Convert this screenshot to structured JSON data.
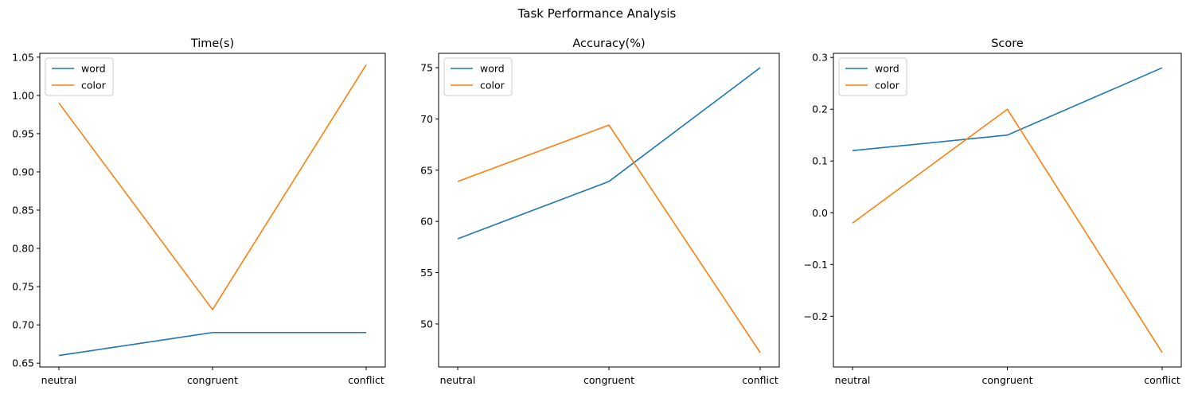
{
  "figure": {
    "suptitle": "Task Performance Analysis"
  },
  "colors": {
    "word": "#1f77b4",
    "color": "#ff7f0e",
    "axes": "#000000",
    "background": "#ffffff"
  },
  "chart_data": [
    {
      "type": "line",
      "title": "Time(s)",
      "xlabel": "",
      "ylabel": "",
      "categories": [
        "neutral",
        "congruent",
        "conflict"
      ],
      "series": [
        {
          "name": "word",
          "values": [
            0.66,
            0.69,
            0.69
          ]
        },
        {
          "name": "color",
          "values": [
            0.99,
            0.72,
            1.04
          ]
        }
      ],
      "ylim": [
        0.645,
        1.055
      ],
      "yticks": [
        0.65,
        0.7,
        0.75,
        0.8,
        0.85,
        0.9,
        0.95,
        1.0,
        1.05
      ],
      "ytick_labels": [
        "0.65",
        "0.70",
        "0.75",
        "0.80",
        "0.85",
        "0.90",
        "0.95",
        "1.00",
        "1.05"
      ],
      "legend": "upper-left",
      "grid": false
    },
    {
      "type": "line",
      "title": "Accuracy(%)",
      "xlabel": "",
      "ylabel": "",
      "categories": [
        "neutral",
        "congruent",
        "conflict"
      ],
      "series": [
        {
          "name": "word",
          "values": [
            58.3,
            63.9,
            75.0
          ]
        },
        {
          "name": "color",
          "values": [
            63.9,
            69.4,
            47.2
          ]
        }
      ],
      "ylim": [
        45.8,
        76.4
      ],
      "yticks": [
        50,
        55,
        60,
        65,
        70,
        75
      ],
      "ytick_labels": [
        "50",
        "55",
        "60",
        "65",
        "70",
        "75"
      ],
      "legend": "upper-left",
      "grid": false
    },
    {
      "type": "line",
      "title": "Score",
      "xlabel": "",
      "ylabel": "",
      "categories": [
        "neutral",
        "congruent",
        "conflict"
      ],
      "series": [
        {
          "name": "word",
          "values": [
            0.12,
            0.15,
            0.28
          ]
        },
        {
          "name": "color",
          "values": [
            -0.02,
            0.2,
            -0.27
          ]
        }
      ],
      "ylim": [
        -0.298,
        0.308
      ],
      "yticks": [
        -0.2,
        -0.1,
        0.0,
        0.1,
        0.2,
        0.3
      ],
      "ytick_labels": [
        "−0.2",
        "−0.1",
        "0.0",
        "0.1",
        "0.2",
        "0.3"
      ],
      "legend": "upper-left",
      "grid": false
    }
  ]
}
